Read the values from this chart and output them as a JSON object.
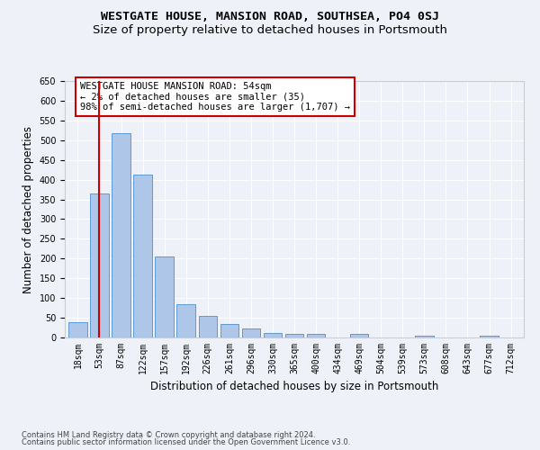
{
  "title": "WESTGATE HOUSE, MANSION ROAD, SOUTHSEA, PO4 0SJ",
  "subtitle": "Size of property relative to detached houses in Portsmouth",
  "xlabel": "Distribution of detached houses by size in Portsmouth",
  "ylabel": "Number of detached properties",
  "categories": [
    "18sqm",
    "53sqm",
    "87sqm",
    "122sqm",
    "157sqm",
    "192sqm",
    "226sqm",
    "261sqm",
    "296sqm",
    "330sqm",
    "365sqm",
    "400sqm",
    "434sqm",
    "469sqm",
    "504sqm",
    "539sqm",
    "573sqm",
    "608sqm",
    "643sqm",
    "677sqm",
    "712sqm"
  ],
  "values": [
    38,
    365,
    517,
    413,
    205,
    84,
    55,
    35,
    22,
    12,
    9,
    9,
    0,
    9,
    0,
    0,
    5,
    0,
    0,
    5,
    0
  ],
  "bar_color": "#aec6e8",
  "bar_edge_color": "#5b9bd5",
  "vline_x": 1,
  "vline_color": "#cc0000",
  "annotation_text": "WESTGATE HOUSE MANSION ROAD: 54sqm\n← 2% of detached houses are smaller (35)\n98% of semi-detached houses are larger (1,707) →",
  "annotation_box_color": "#ffffff",
  "annotation_box_edge": "#cc0000",
  "ylim": [
    0,
    650
  ],
  "yticks": [
    0,
    50,
    100,
    150,
    200,
    250,
    300,
    350,
    400,
    450,
    500,
    550,
    600,
    650
  ],
  "footer1": "Contains HM Land Registry data © Crown copyright and database right 2024.",
  "footer2": "Contains public sector information licensed under the Open Government Licence v3.0.",
  "background_color": "#eef2f8",
  "grid_color": "#ffffff",
  "title_fontsize": 9.5,
  "subtitle_fontsize": 9.5,
  "tick_fontsize": 7,
  "ylabel_fontsize": 8.5,
  "xlabel_fontsize": 8.5,
  "annotation_fontsize": 7.5,
  "footer_fontsize": 6
}
